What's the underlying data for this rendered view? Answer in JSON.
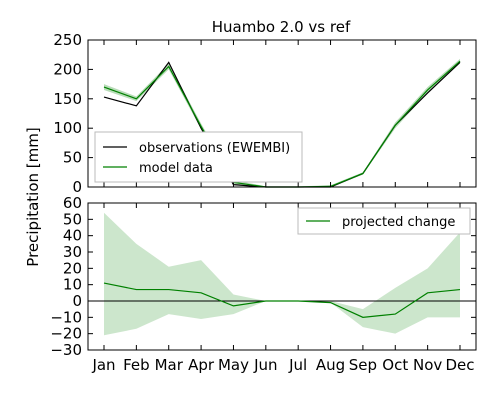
{
  "chart_data": {
    "title": "Huambo 2.0 vs ref",
    "ylabel": "Precipitation [mm]",
    "categories": [
      "Jan",
      "Feb",
      "Mar",
      "Apr",
      "May",
      "Jun",
      "Jul",
      "Aug",
      "Sep",
      "Oct",
      "Nov",
      "Dec"
    ],
    "panels": [
      {
        "type": "line",
        "ylim": [
          0,
          250
        ],
        "yticks": [
          0,
          50,
          100,
          150,
          200,
          250
        ],
        "legend_position": "lower-left",
        "series": [
          {
            "name": "observations (EWEMBI)",
            "color": "#000000",
            "values": [
              153,
              138,
              212,
              100,
              4,
              0,
              0,
              0,
              23,
              105,
              160,
              212
            ]
          },
          {
            "name": "model data",
            "color": "#008000",
            "values": [
              170,
              150,
              205,
              103,
              8,
              0,
              0,
              1,
              23,
              105,
              165,
              214
            ],
            "band_low": [
              165,
              146,
              200,
              98,
              5,
              0,
              0,
              0,
              21,
              100,
              160,
              210
            ],
            "band_high": [
              175,
              154,
              210,
              108,
              12,
              1,
              1,
              3,
              25,
              110,
              170,
              218
            ]
          }
        ]
      },
      {
        "type": "line",
        "ylim": [
          -30,
          60
        ],
        "yticks": [
          -30,
          -20,
          -10,
          0,
          10,
          20,
          30,
          40,
          50,
          60
        ],
        "legend_position": "upper-right",
        "zero_line": true,
        "series": [
          {
            "name": "projected change",
            "color": "#008000",
            "values": [
              11,
              7,
              7,
              5,
              -3,
              0,
              0,
              -1,
              -10,
              -8,
              5,
              7
            ],
            "band_low": [
              -21,
              -17,
              -8,
              -11,
              -8,
              0,
              0,
              -1,
              -16,
              -20,
              -10,
              -10
            ],
            "band_high": [
              54,
              35,
              21,
              25,
              4,
              0,
              0,
              0,
              -5,
              8,
              20,
              42
            ]
          }
        ]
      }
    ]
  }
}
